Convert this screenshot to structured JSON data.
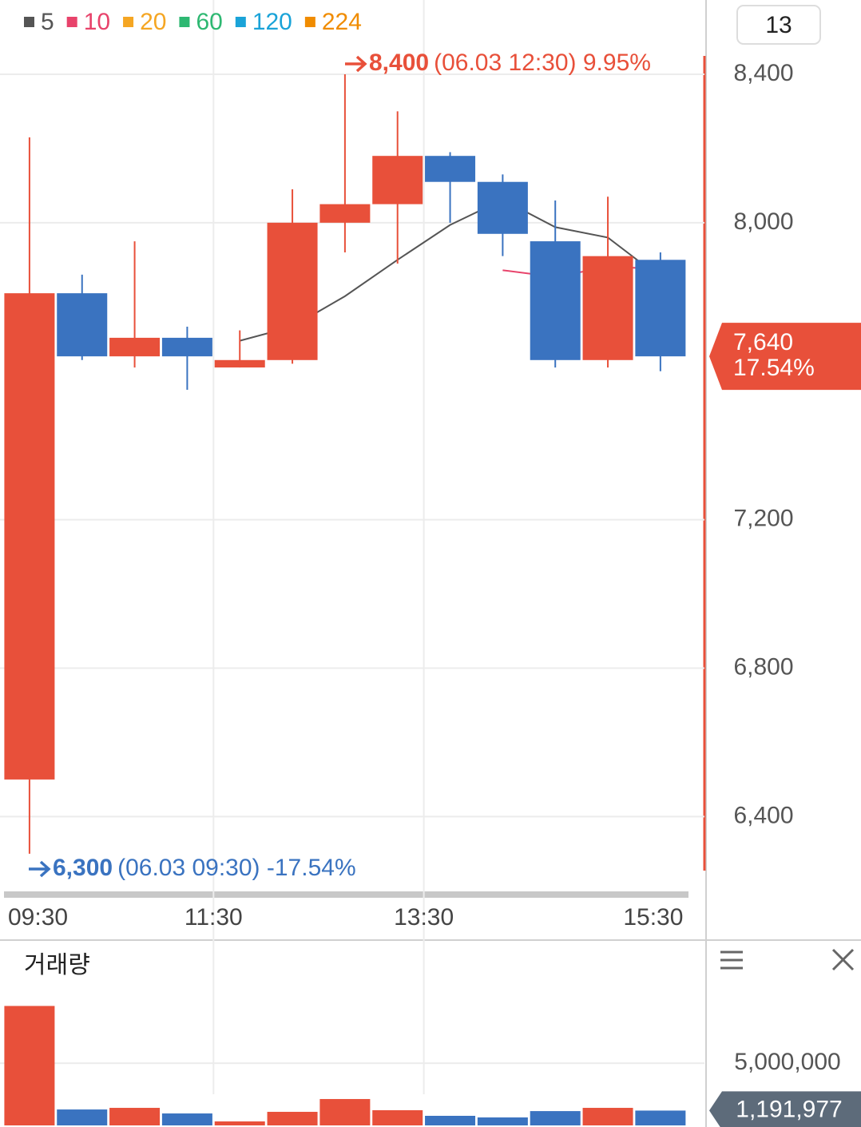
{
  "chart_data": [
    {
      "type": "candlestick",
      "period": "13",
      "categories": [
        "09:30",
        null,
        null,
        null,
        "11:30",
        null,
        null,
        null,
        "13:30",
        null,
        null,
        null,
        "15:30"
      ],
      "open": [
        6500,
        7810,
        7640,
        7690,
        7610,
        7630,
        8000,
        8050,
        8180,
        8110,
        7950,
        7630,
        7900
      ],
      "high": [
        8230,
        7860,
        7950,
        7720,
        7710,
        8090,
        8400,
        8300,
        8190,
        8130,
        8060,
        8070,
        7920
      ],
      "low": [
        6300,
        7630,
        7610,
        7550,
        7610,
        7620,
        7920,
        7890,
        8000,
        7910,
        7610,
        7610,
        7600
      ],
      "close": [
        7810,
        7640,
        7690,
        7640,
        7630,
        8000,
        8050,
        8180,
        8110,
        7970,
        7630,
        7910,
        7640
      ],
      "up_color": "#e8503a",
      "down_color": "#3a73c0",
      "series": [
        {
          "name": "5",
          "color": "#555555",
          "values": [
            null,
            null,
            null,
            null,
            7682,
            7720,
            7802,
            7900,
            7994,
            8062,
            7988,
            7960,
            7852
          ]
        },
        {
          "name": "10",
          "color": "#e8436b",
          "values": [
            null,
            null,
            null,
            null,
            null,
            null,
            null,
            null,
            null,
            7872,
            7854,
            7881,
            7876
          ]
        },
        {
          "name": "20",
          "color": "#f5a623"
        },
        {
          "name": "60",
          "color": "#2eb872"
        },
        {
          "name": "120",
          "color": "#1aa3d8"
        },
        {
          "name": "224",
          "color": "#f08c00"
        }
      ],
      "ylim": [
        6190,
        8600
      ],
      "yticks": [
        {
          "value": 8400,
          "label": "8,400"
        },
        {
          "value": 8000,
          "label": "8,000"
        },
        {
          "value": 7200,
          "label": "7,200"
        },
        {
          "value": 6800,
          "label": "6,800"
        },
        {
          "value": 6400,
          "label": "6,400"
        }
      ],
      "high_annotation": {
        "value": 8400,
        "label": "8,400",
        "detail": "(06.03 12:30) 9.95%"
      },
      "low_annotation": {
        "value": 6300,
        "label": "6,300",
        "detail": "(06.03 09:30) -17.54%"
      },
      "last_price": {
        "value": 7640,
        "label": "7,640",
        "change": "17.54%"
      }
    },
    {
      "type": "bar",
      "title": "거래량",
      "values": [
        9600000,
        1280000,
        1410000,
        960000,
        320000,
        1090000,
        2120000,
        1220000,
        770000,
        640000,
        1150000,
        1410000,
        1191977
      ],
      "value_labels": [
        null,
        null,
        null,
        null,
        null,
        null,
        null,
        null,
        null,
        null,
        null,
        null,
        "1,191,977"
      ],
      "ylim": [
        0,
        14700000
      ],
      "yticks": [
        {
          "value": 5000000,
          "label": "5,000,000"
        }
      ]
    }
  ]
}
